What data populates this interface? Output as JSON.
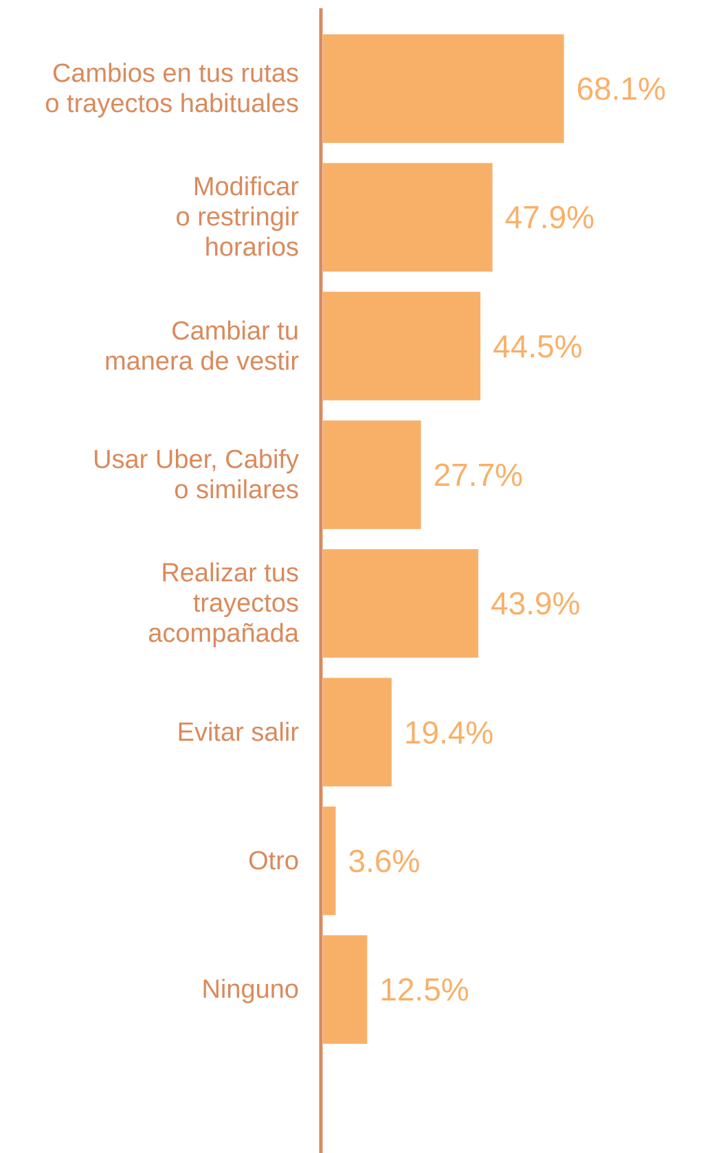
{
  "chart_data": {
    "type": "hbar",
    "categories": [
      "Cambios en tus rutas\no trayectos habituales",
      "Modificar\no restringir\nhorarios",
      "Cambiar tu\nmanera de vestir",
      "Usar Uber, Cabify\no similares",
      "Realizar tus\ntrayectos\nacompañada",
      "Evitar salir",
      "Otro",
      "Ninguno"
    ],
    "values": [
      68.1,
      47.9,
      44.5,
      27.7,
      43.9,
      19.4,
      3.6,
      12.5
    ],
    "value_labels": [
      "68.1%",
      "47.9%",
      "44.5%",
      "27.7%",
      "43.9%",
      "19.4%",
      "3.6%",
      "12.5%"
    ],
    "color": "#f8b068",
    "xlim": [
      0,
      100
    ]
  }
}
